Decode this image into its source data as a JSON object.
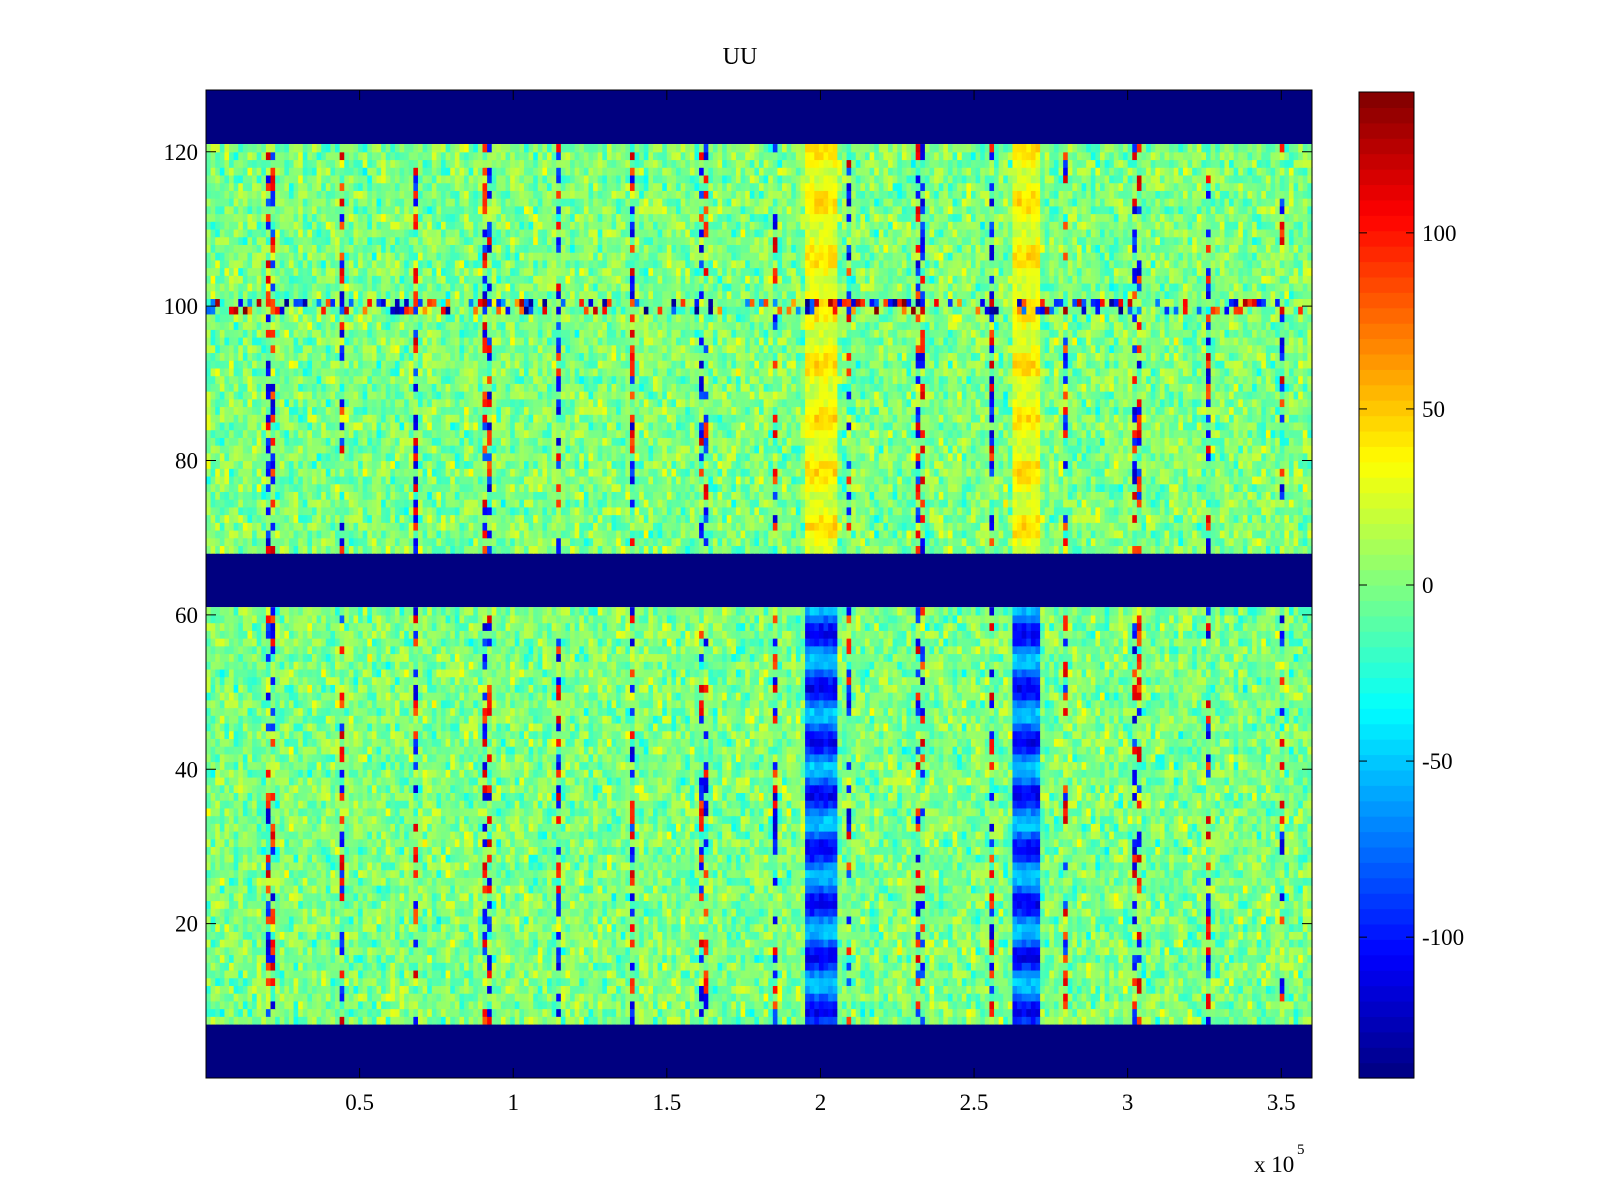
{
  "chart_data": {
    "type": "heatmap",
    "title": "UU",
    "xlabel": "",
    "ylabel": "",
    "x_multiplier_label": "x 10",
    "x_multiplier_exponent": "5",
    "xlim": [
      0.0,
      3.6
    ],
    "ylim": [
      0,
      128
    ],
    "xticks": [
      0.5,
      1,
      1.5,
      2,
      2.5,
      3,
      3.5
    ],
    "xtick_labels": [
      "0.5",
      "1",
      "1.5",
      "2",
      "2.5",
      "3",
      "3.5"
    ],
    "yticks": [
      20,
      40,
      60,
      80,
      100,
      120
    ],
    "ytick_labels": [
      "20",
      "40",
      "60",
      "80",
      "100",
      "120"
    ],
    "colormap": "jet",
    "clim": [
      -140,
      140
    ],
    "colorbar": {
      "ticks": [
        -100,
        -50,
        0,
        50,
        100
      ],
      "tick_labels": [
        "-100",
        "-50",
        "0",
        "50",
        "100"
      ]
    },
    "bands": [
      {
        "y": [
          0,
          7
        ],
        "value": -140,
        "note": "masked (constant min)"
      },
      {
        "y": [
          7,
          61
        ],
        "value_typical": 0,
        "noise_range": [
          -40,
          40
        ]
      },
      {
        "y": [
          61,
          68
        ],
        "value": -140,
        "note": "masked (constant min)"
      },
      {
        "y": [
          68,
          121
        ],
        "value_typical": 0,
        "noise_range": [
          -40,
          40
        ]
      },
      {
        "y": [
          121,
          128
        ],
        "value": -140,
        "note": "masked (constant min)"
      }
    ],
    "features": [
      {
        "x_range": [
          1.95,
          2.05
        ],
        "y_range": [
          7,
          61
        ],
        "value": -110
      },
      {
        "x_range": [
          2.62,
          2.72
        ],
        "y_range": [
          7,
          61
        ],
        "value": -110
      },
      {
        "x_range": [
          1.95,
          2.05
        ],
        "y_range": [
          68,
          121
        ],
        "value": 45
      },
      {
        "x_range": [
          2.62,
          2.72
        ],
        "y_range": [
          68,
          121
        ],
        "value": 45
      },
      {
        "row_y": 100,
        "value_range": [
          -140,
          140
        ]
      },
      {
        "periodic_spikes_x_spacing": 0.235,
        "value_range": [
          -120,
          120
        ]
      }
    ],
    "grid": false,
    "legend": "colorbar-right"
  }
}
